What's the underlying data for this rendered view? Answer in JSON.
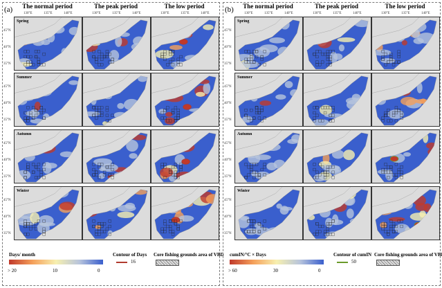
{
  "figure": {
    "panels": [
      {
        "label": "(a)",
        "legend": {
          "title": "Days/ month",
          "ticks": [
            "> 20",
            "10",
            "0"
          ],
          "contour_title": "Contour of Days",
          "contour_value": "16",
          "contour_color": "#b03a2e"
        }
      },
      {
        "label": "(b)",
        "legend": {
          "title": "cumIN/°C × Days",
          "ticks": [
            "> 60",
            "30",
            "0"
          ],
          "contour_title": "Contour of cumIN",
          "contour_value": "50",
          "contour_color": "#6a9a2a"
        }
      }
    ],
    "columns": [
      "The normal period",
      "The peak period",
      "The low period"
    ],
    "seasons": [
      "Spring",
      "Summer",
      "Autumn",
      "Winter"
    ],
    "lon_ticks": [
      "130°E",
      "135°E",
      "140°E"
    ],
    "lat_ticks": [
      "45°N",
      "40°N",
      "35°N"
    ],
    "hatch_legend": "Core fishing grounds area of VBD",
    "colormap": [
      "#c0392b",
      "#f5a05a",
      "#f7f0b0",
      "#b7c4dc",
      "#3a5fcd"
    ]
  }
}
